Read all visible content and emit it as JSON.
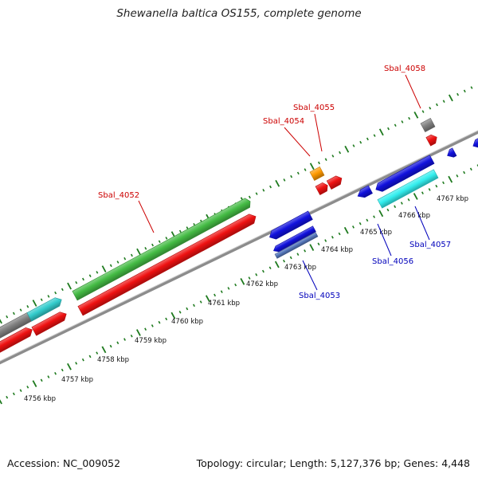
{
  "title": "Shewanella baltica OS155, complete genome",
  "footer": {
    "accession": "Accession: NC_009052",
    "summary": "Topology: circular; Length: 5,127,376 bp; Genes: 4,448"
  },
  "colors": {
    "backbone": "#8c8c8c",
    "ticks": "#1e7a1e",
    "forward_label": "#cc0000",
    "reverse_label": "#0000bb",
    "leader_forward": "#cc0000",
    "leader_reverse": "#0000bb"
  },
  "scale_labels": [
    "4756 kbp",
    "4757 kbp",
    "4758 kbp",
    "4759 kbp",
    "4760 kbp",
    "4761 kbp",
    "4762 kbp",
    "4763 kbp",
    "4764 kbp",
    "4765 kbp",
    "4766 kbp",
    "4767 kbp"
  ],
  "gene_labels": [
    {
      "text": "Sbal_4052",
      "strand": "forward"
    },
    {
      "text": "Sbal_4054",
      "strand": "forward"
    },
    {
      "text": "Sbal_4055",
      "strand": "forward"
    },
    {
      "text": "Sbal_4058",
      "strand": "forward"
    },
    {
      "text": "Sbal_4053",
      "strand": "reverse"
    },
    {
      "text": "Sbal_4056",
      "strand": "reverse"
    },
    {
      "text": "Sbal_4057",
      "strand": "reverse"
    }
  ],
  "features": [
    {
      "name": "gray-forward-gene",
      "color": "#808080"
    },
    {
      "name": "cyan-forward-gene",
      "color": "#33cccc"
    },
    {
      "name": "red-gene-left-1",
      "color": "#ee1111"
    },
    {
      "name": "red-gene-left-2",
      "color": "#ee1111"
    },
    {
      "name": "green-gene-sbal-4052",
      "color": "#44bb44"
    },
    {
      "name": "red-gene-sbal-4052",
      "color": "#ee1111"
    },
    {
      "name": "blue-gene-sbal-4053-a",
      "color": "#1111dd"
    },
    {
      "name": "blue-gene-sbal-4053-b",
      "color": "#1111dd"
    },
    {
      "name": "steelblue-gene-sbal-4053",
      "color": "#5577bb"
    },
    {
      "name": "orange-gene-sbal-4054",
      "color": "#ff9900"
    },
    {
      "name": "red-gene-sbal-4054",
      "color": "#ee1111"
    },
    {
      "name": "red-gene-sbal-4055",
      "color": "#ee1111"
    },
    {
      "name": "blue-gene-sbal-4056",
      "color": "#1111dd"
    },
    {
      "name": "blue-gene-sbal-4057",
      "color": "#1111dd"
    },
    {
      "name": "cyan-gene-sbal-4057",
      "color": "#33eeee"
    },
    {
      "name": "gray-gene-sbal-4058",
      "color": "#808080"
    },
    {
      "name": "red-gene-sbal-4058",
      "color": "#ee1111"
    },
    {
      "name": "blue-gene-right-1",
      "color": "#1111dd"
    },
    {
      "name": "blue-gene-right-2",
      "color": "#1111dd"
    }
  ]
}
